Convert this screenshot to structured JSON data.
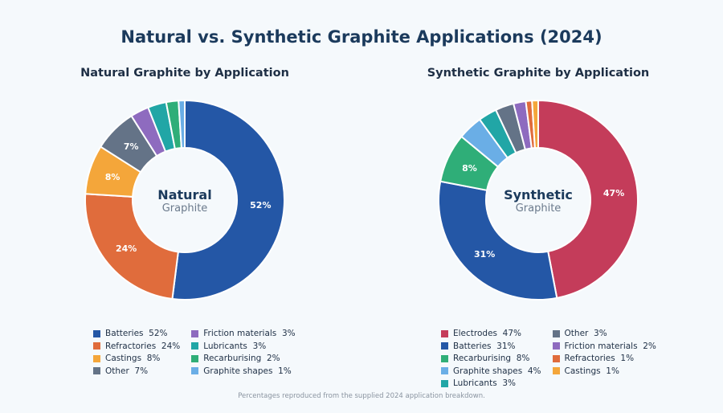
{
  "title": "Natural vs. Synthetic Graphite Applications (2024)",
  "footnote": "Percentages reproduced from the supplied 2024 application breakdown.",
  "chart_data": [
    {
      "type": "pie",
      "title": "Natural Graphite by Application",
      "center_label": "Natural",
      "center_sublabel": "Graphite",
      "slices": [
        {
          "label": "Batteries",
          "value": 52,
          "color": "#2457a6"
        },
        {
          "label": "Refractories",
          "value": 24,
          "color": "#e06c3c"
        },
        {
          "label": "Castings",
          "value": 8,
          "color": "#f4a63a"
        },
        {
          "label": "Other",
          "value": 7,
          "color": "#647387"
        },
        {
          "label": "Friction materials",
          "value": 3,
          "color": "#8e6bbf"
        },
        {
          "label": "Lubricants",
          "value": 3,
          "color": "#21a6a6"
        },
        {
          "label": "Recarburising",
          "value": 2,
          "color": "#2fae78"
        },
        {
          "label": "Graphite shapes",
          "value": 1,
          "color": "#6aaee6"
        }
      ],
      "legend": "bottom"
    },
    {
      "type": "pie",
      "title": "Synthetic Graphite by Application",
      "center_label": "Synthetic",
      "center_sublabel": "Graphite",
      "slices": [
        {
          "label": "Electrodes",
          "value": 47,
          "color": "#c43c5a"
        },
        {
          "label": "Batteries",
          "value": 31,
          "color": "#2457a6"
        },
        {
          "label": "Recarburising",
          "value": 8,
          "color": "#2fae78"
        },
        {
          "label": "Graphite shapes",
          "value": 4,
          "color": "#6aaee6"
        },
        {
          "label": "Lubricants",
          "value": 3,
          "color": "#21a6a6"
        },
        {
          "label": "Other",
          "value": 3,
          "color": "#647387"
        },
        {
          "label": "Friction materials",
          "value": 2,
          "color": "#8e6bbf"
        },
        {
          "label": "Refractories",
          "value": 1,
          "color": "#e06c3c"
        },
        {
          "label": "Castings",
          "value": 1,
          "color": "#f4a63a"
        }
      ],
      "legend": "bottom"
    }
  ]
}
